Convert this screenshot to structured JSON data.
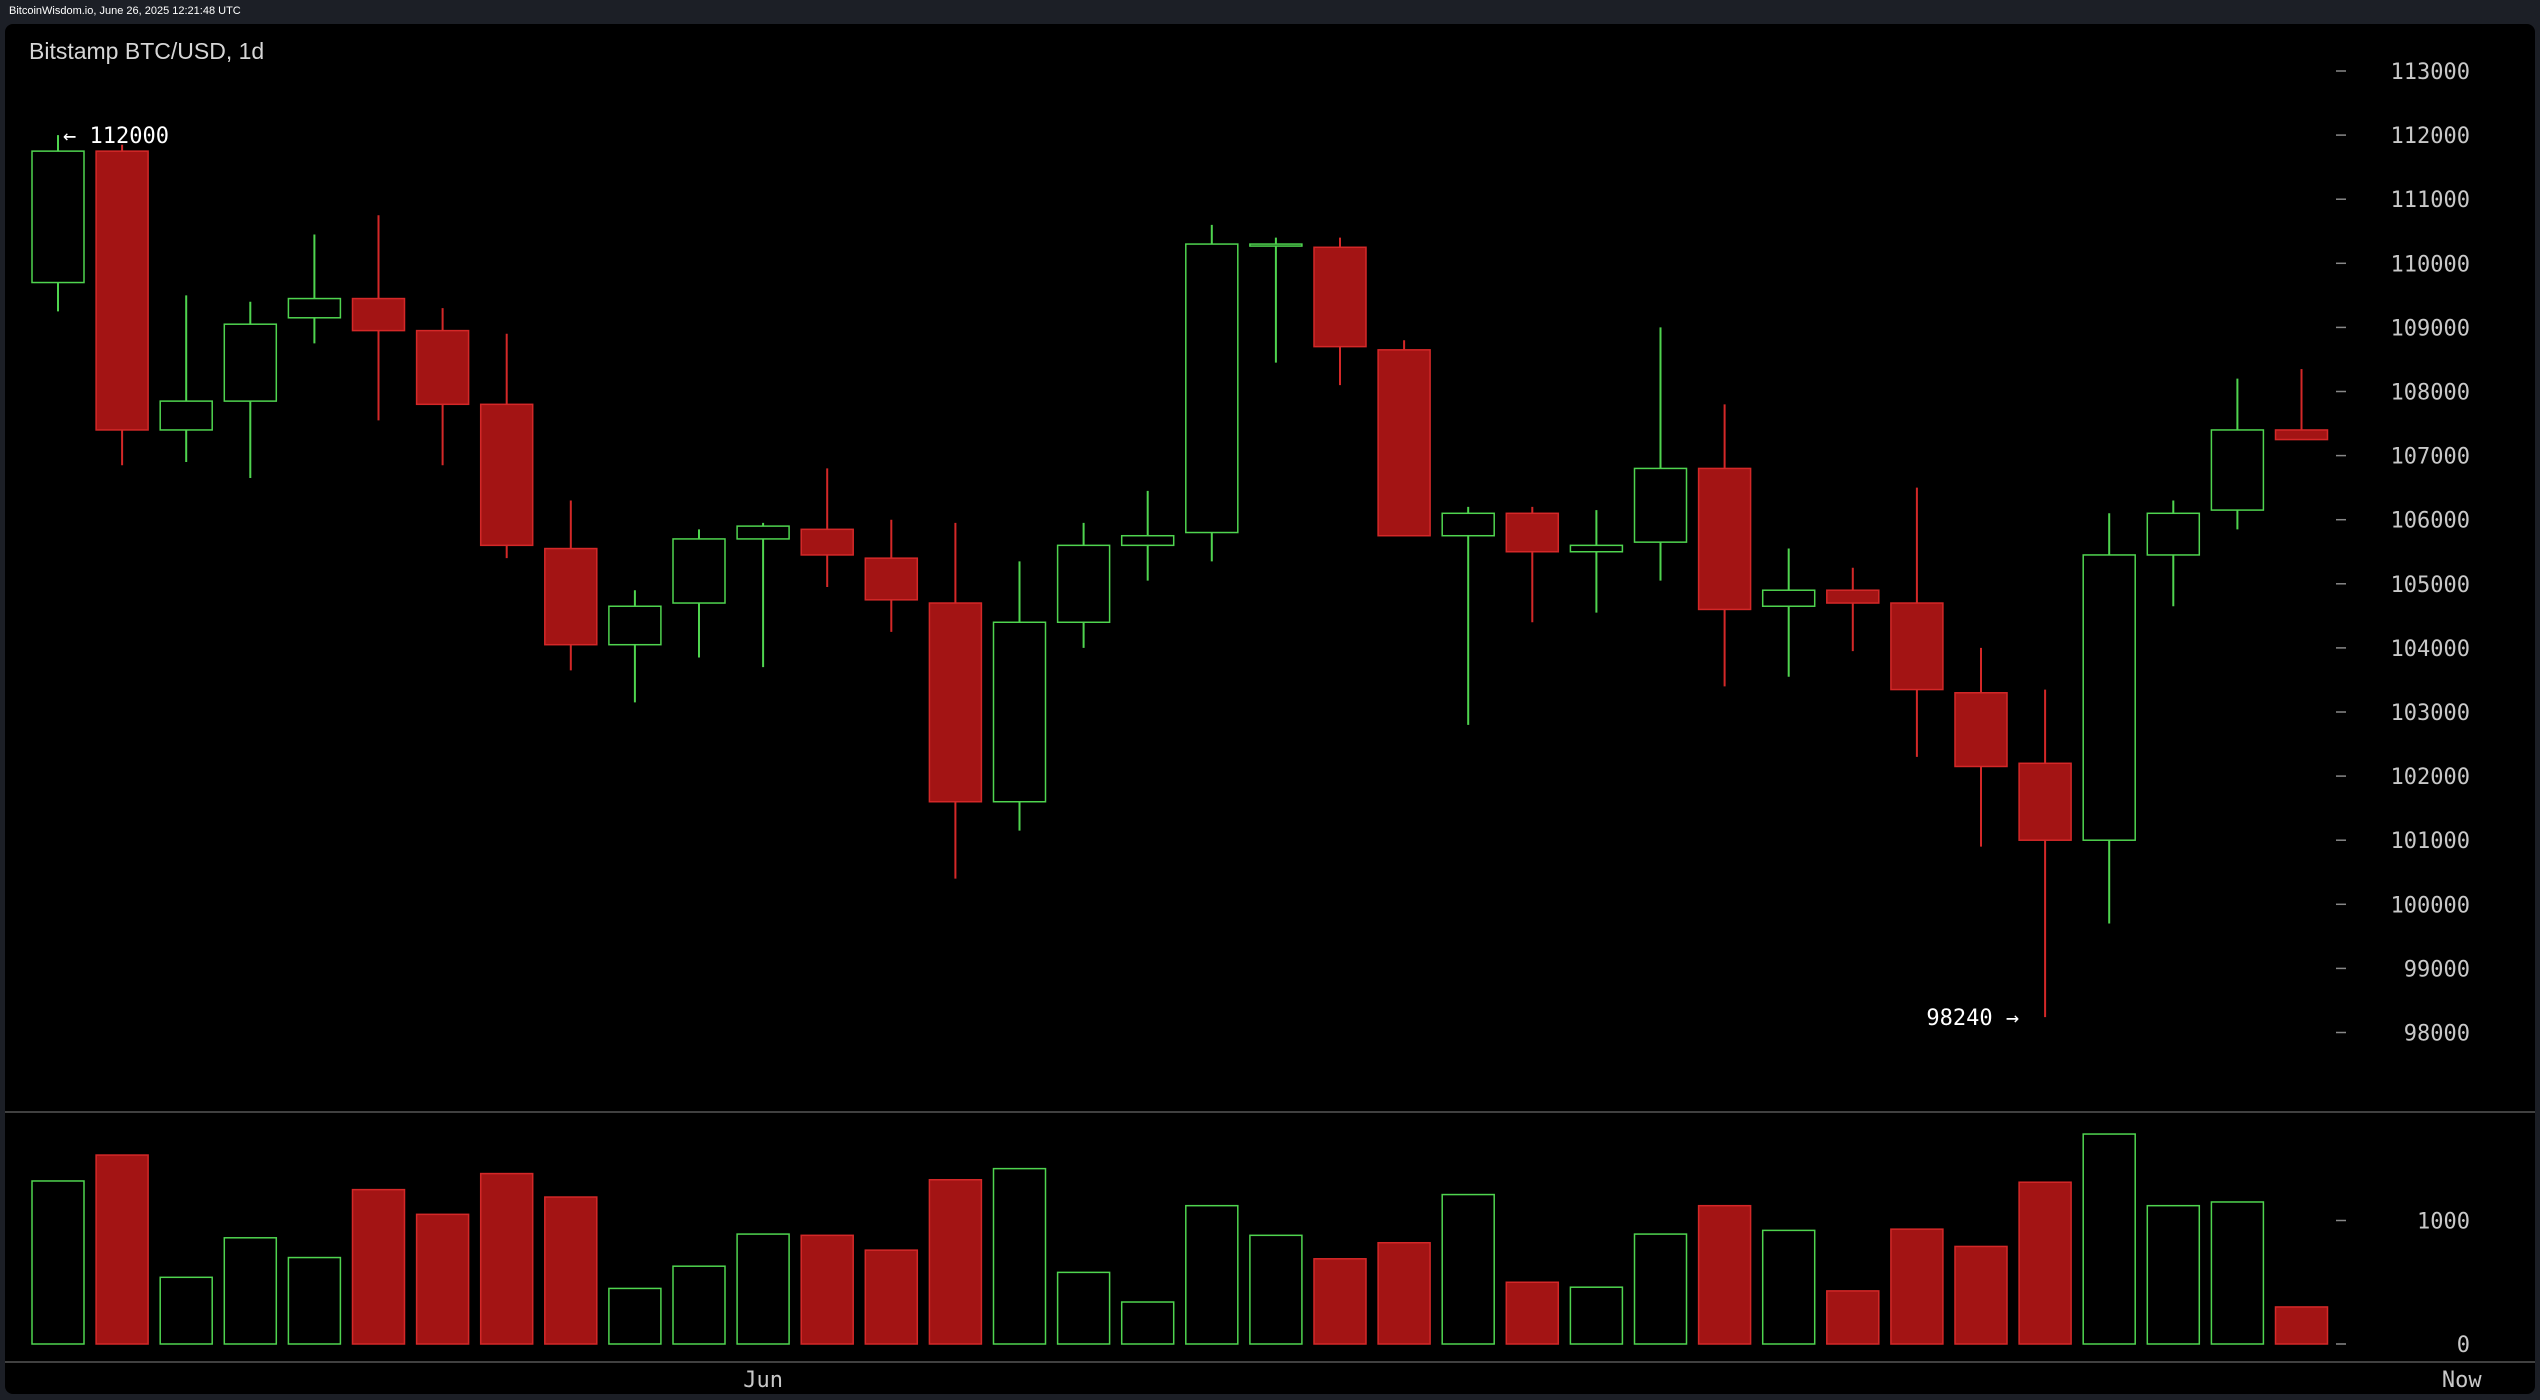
{
  "header": {
    "text": "BitcoinWisdom.io, June 26, 2025 12:21:48 UTC"
  },
  "chart_data": {
    "type": "candlestick",
    "title": "Bitstamp BTC/USD, 1d",
    "price_axis": {
      "ylim": [
        97000,
        113600
      ],
      "ticks": [
        113000,
        112000,
        111000,
        110000,
        109000,
        108000,
        107000,
        106000,
        105000,
        104000,
        103000,
        102000,
        101000,
        100000,
        99000,
        98000
      ],
      "tick_labels": [
        "113000",
        "112000",
        "111000",
        "110000",
        "109000",
        "108000",
        "107000",
        "106000",
        "105000",
        "104000",
        "103000",
        "102000",
        "101000",
        "100000",
        "99000",
        "98000"
      ]
    },
    "volume_axis": {
      "ylim": [
        0,
        1900
      ],
      "ticks": [
        0,
        1000
      ],
      "tick_labels": [
        "0",
        "1000"
      ]
    },
    "x_axis": {
      "labels": [
        {
          "text": "Jun",
          "index": 11
        },
        {
          "text": "Now",
          "index": 37.5
        }
      ]
    },
    "annotations": [
      {
        "text": "← 112000",
        "index": 0,
        "value": 112000,
        "side": "right"
      },
      {
        "text": "98240 →",
        "index": 31,
        "value": 98240,
        "side": "left"
      }
    ],
    "colors": {
      "up": "#4fd44f",
      "down": "#a31414",
      "down_border": "#d42828",
      "axis_text": "#c8c8c8",
      "grid": "#555555"
    },
    "candles": [
      {
        "open": 109700,
        "high": 112000,
        "low": 109250,
        "close": 111750,
        "volume": 1320
      },
      {
        "open": 111750,
        "high": 111850,
        "low": 106850,
        "close": 107400,
        "volume": 1530
      },
      {
        "open": 107400,
        "high": 109500,
        "low": 106900,
        "close": 107850,
        "volume": 540
      },
      {
        "open": 107850,
        "high": 109400,
        "low": 106650,
        "close": 109050,
        "volume": 860
      },
      {
        "open": 109150,
        "high": 110450,
        "low": 108750,
        "close": 109450,
        "volume": 700
      },
      {
        "open": 109450,
        "high": 110750,
        "low": 107550,
        "close": 108950,
        "volume": 1250
      },
      {
        "open": 108950,
        "high": 109300,
        "low": 106850,
        "close": 107800,
        "volume": 1050
      },
      {
        "open": 107800,
        "high": 108900,
        "low": 105400,
        "close": 105600,
        "volume": 1380
      },
      {
        "open": 105550,
        "high": 106300,
        "low": 103650,
        "close": 104050,
        "volume": 1190
      },
      {
        "open": 104050,
        "high": 104900,
        "low": 103150,
        "close": 104650,
        "volume": 450
      },
      {
        "open": 104700,
        "high": 105850,
        "low": 103850,
        "close": 105700,
        "volume": 630
      },
      {
        "open": 105700,
        "high": 105950,
        "low": 103700,
        "close": 105900,
        "volume": 890
      },
      {
        "open": 105850,
        "high": 106800,
        "low": 104950,
        "close": 105450,
        "volume": 880
      },
      {
        "open": 105400,
        "high": 106000,
        "low": 104250,
        "close": 104750,
        "volume": 760
      },
      {
        "open": 104700,
        "high": 105950,
        "low": 100400,
        "close": 101600,
        "volume": 1330
      },
      {
        "open": 101600,
        "high": 105350,
        "low": 101150,
        "close": 104400,
        "volume": 1420
      },
      {
        "open": 104400,
        "high": 105950,
        "low": 104000,
        "close": 105600,
        "volume": 580
      },
      {
        "open": 105600,
        "high": 106450,
        "low": 105050,
        "close": 105750,
        "volume": 340
      },
      {
        "open": 105800,
        "high": 110600,
        "low": 105350,
        "close": 110300,
        "volume": 1120
      },
      {
        "open": 110300,
        "high": 110400,
        "low": 108450,
        "close": 110300,
        "volume": 880
      },
      {
        "open": 110250,
        "high": 110400,
        "low": 108100,
        "close": 108700,
        "volume": 690
      },
      {
        "open": 108650,
        "high": 108800,
        "low": 105750,
        "close": 105750,
        "volume": 820
      },
      {
        "open": 105750,
        "high": 106200,
        "low": 102800,
        "close": 106100,
        "volume": 1210
      },
      {
        "open": 106100,
        "high": 106200,
        "low": 104400,
        "close": 105500,
        "volume": 500
      },
      {
        "open": 105500,
        "high": 106150,
        "low": 104550,
        "close": 105600,
        "volume": 460
      },
      {
        "open": 105650,
        "high": 109000,
        "low": 105050,
        "close": 106800,
        "volume": 890
      },
      {
        "open": 106800,
        "high": 107800,
        "low": 103400,
        "close": 104600,
        "volume": 1120
      },
      {
        "open": 104650,
        "high": 105550,
        "low": 103550,
        "close": 104900,
        "volume": 920
      },
      {
        "open": 104900,
        "high": 105250,
        "low": 103950,
        "close": 104700,
        "volume": 430
      },
      {
        "open": 104700,
        "high": 106500,
        "low": 102300,
        "close": 103350,
        "volume": 930
      },
      {
        "open": 103300,
        "high": 104000,
        "low": 100900,
        "close": 102150,
        "volume": 790
      },
      {
        "open": 102200,
        "high": 103350,
        "low": 98240,
        "close": 101000,
        "volume": 1310
      },
      {
        "open": 101000,
        "high": 106100,
        "low": 99700,
        "close": 105450,
        "volume": 1700
      },
      {
        "open": 105450,
        "high": 106300,
        "low": 104650,
        "close": 106100,
        "volume": 1120
      },
      {
        "open": 106150,
        "high": 108200,
        "low": 105850,
        "close": 107400,
        "volume": 1150
      },
      {
        "open": 107400,
        "high": 108350,
        "low": 107250,
        "close": 107250,
        "volume": 300
      }
    ]
  }
}
